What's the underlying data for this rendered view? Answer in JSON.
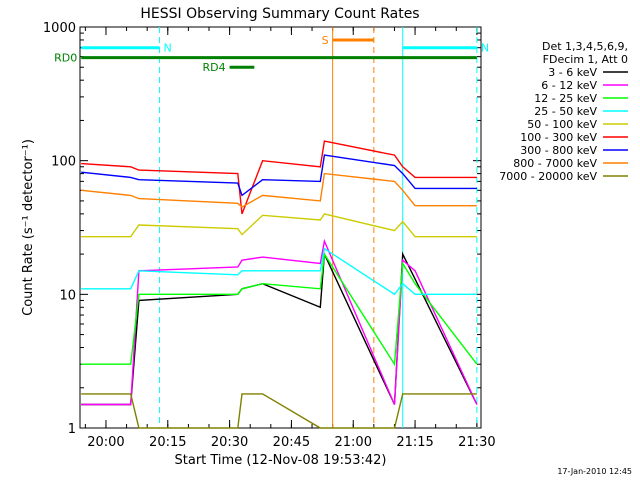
{
  "footer_stamp": "17-Jan-2010 12:45",
  "chart_data": {
    "type": "line",
    "title": "HESSI Observing Summary Count Rates",
    "xlabel": "Start Time (12-Nov-08 19:53:42)",
    "ylabel": "Count Rate (s⁻¹ detector⁻¹)",
    "yscale": "log",
    "ylim": [
      1,
      1000
    ],
    "xlim": [
      "19:53:42",
      "21:31:00"
    ],
    "x_ticks": [
      "20:00",
      "20:15",
      "20:30",
      "20:45",
      "21:00",
      "21:15",
      "21:30"
    ],
    "y_ticks": [
      "1",
      "10",
      "100",
      "1000"
    ],
    "legend_header": [
      "Det 1,3,4,5,6,9,",
      "FDecim 1, Att 0"
    ],
    "legend_position": "right",
    "series": [
      {
        "name": "3 - 6 keV",
        "color": "#000000",
        "x": [
          "19:54",
          "20:06",
          "20:08",
          "20:32",
          "20:33",
          "20:38",
          "20:52",
          "20:53",
          "21:10",
          "21:12",
          "21:15",
          "21:30"
        ],
        "y": [
          1.5,
          1.5,
          9,
          10,
          11,
          12,
          8,
          20,
          1.5,
          20,
          13,
          1.5
        ]
      },
      {
        "name": "6 - 12 keV",
        "color": "#ff00ff",
        "x": [
          "19:54",
          "20:06",
          "20:08",
          "20:32",
          "20:33",
          "20:38",
          "20:52",
          "20:53",
          "21:10",
          "21:12",
          "21:15",
          "21:30"
        ],
        "y": [
          1.5,
          1.5,
          15,
          16,
          18,
          19,
          17,
          25,
          1.5,
          18,
          15,
          1.5
        ]
      },
      {
        "name": "12 - 25 keV",
        "color": "#00ff00",
        "x": [
          "19:54",
          "20:06",
          "20:08",
          "20:32",
          "20:33",
          "20:38",
          "20:52",
          "20:53",
          "21:10",
          "21:12",
          "21:15",
          "21:30"
        ],
        "y": [
          3,
          3,
          10,
          10,
          11,
          12,
          11,
          20,
          3,
          17,
          12,
          3
        ]
      },
      {
        "name": "25 - 50 keV",
        "color": "#00ffff",
        "x": [
          "19:54",
          "20:06",
          "20:08",
          "20:32",
          "20:33",
          "20:38",
          "20:52",
          "20:53",
          "21:10",
          "21:12",
          "21:15",
          "21:30"
        ],
        "y": [
          11,
          11,
          15,
          14,
          15,
          15,
          15,
          22,
          10,
          12,
          10,
          10
        ]
      },
      {
        "name": "50 - 100 keV",
        "color": "#cccc00",
        "x": [
          "19:54",
          "20:06",
          "20:08",
          "20:32",
          "20:33",
          "20:38",
          "20:52",
          "20:53",
          "21:10",
          "21:12",
          "21:15",
          "21:30"
        ],
        "y": [
          27,
          27,
          33,
          31,
          28,
          39,
          36,
          40,
          30,
          35,
          27,
          27
        ]
      },
      {
        "name": "100 - 300 keV",
        "color": "#ff0000",
        "x": [
          "19:54",
          "20:06",
          "20:08",
          "20:32",
          "20:33",
          "20:38",
          "20:52",
          "20:53",
          "21:10",
          "21:12",
          "21:15",
          "21:30"
        ],
        "y": [
          95,
          90,
          85,
          80,
          40,
          100,
          90,
          140,
          110,
          90,
          75,
          75
        ]
      },
      {
        "name": "300 - 800 keV",
        "color": "#0000ff",
        "x": [
          "19:54",
          "20:06",
          "20:08",
          "20:32",
          "20:33",
          "20:38",
          "20:52",
          "20:53",
          "21:10",
          "21:12",
          "21:15",
          "21:30"
        ],
        "y": [
          82,
          75,
          72,
          68,
          55,
          72,
          70,
          110,
          92,
          80,
          62,
          62
        ]
      },
      {
        "name": "800 - 7000 keV",
        "color": "#ff8000",
        "x": [
          "19:54",
          "20:06",
          "20:08",
          "20:32",
          "20:33",
          "20:38",
          "20:52",
          "20:53",
          "21:10",
          "21:12",
          "21:15",
          "21:30"
        ],
        "y": [
          60,
          55,
          52,
          48,
          45,
          55,
          50,
          80,
          70,
          60,
          46,
          46
        ]
      },
      {
        "name": "7000 - 20000 keV",
        "color": "#808000",
        "x": [
          "19:54",
          "20:06",
          "20:08",
          "20:32",
          "20:33",
          "20:38",
          "20:52",
          "20:53",
          "21:10",
          "21:12",
          "21:15",
          "21:30"
        ],
        "y": [
          1.8,
          1.8,
          1,
          1,
          1.8,
          1.8,
          1,
          1,
          1,
          1.8,
          1.8,
          1.8
        ]
      }
    ],
    "flags": [
      {
        "label": "N",
        "color": "#00ffff",
        "y": 700,
        "x": [
          "19:54",
          "20:13"
        ]
      },
      {
        "label": "N",
        "color": "#00ffff",
        "y": 700,
        "x": [
          "21:12",
          "21:30"
        ]
      },
      {
        "label": "S",
        "color": "#ff8000",
        "y": 800,
        "x": [
          "20:55",
          "21:05"
        ]
      },
      {
        "label": "RD0",
        "color": "#008000",
        "y": 590,
        "x": [
          "19:54",
          "21:30"
        ]
      },
      {
        "label": "RD4",
        "color": "#008000",
        "y": 500,
        "x": [
          "20:30",
          "20:36"
        ]
      }
    ],
    "vertical_markers": [
      {
        "x": "20:13",
        "color": "#00ffff",
        "style": "dashed"
      },
      {
        "x": "20:55",
        "color": "#ff8000",
        "style": "solid"
      },
      {
        "x": "21:05",
        "color": "#ff8000",
        "style": "dashed"
      },
      {
        "x": "21:12",
        "color": "#00ffff",
        "style": "solid"
      },
      {
        "x": "21:30",
        "color": "#00ffff",
        "style": "dashed"
      }
    ]
  }
}
